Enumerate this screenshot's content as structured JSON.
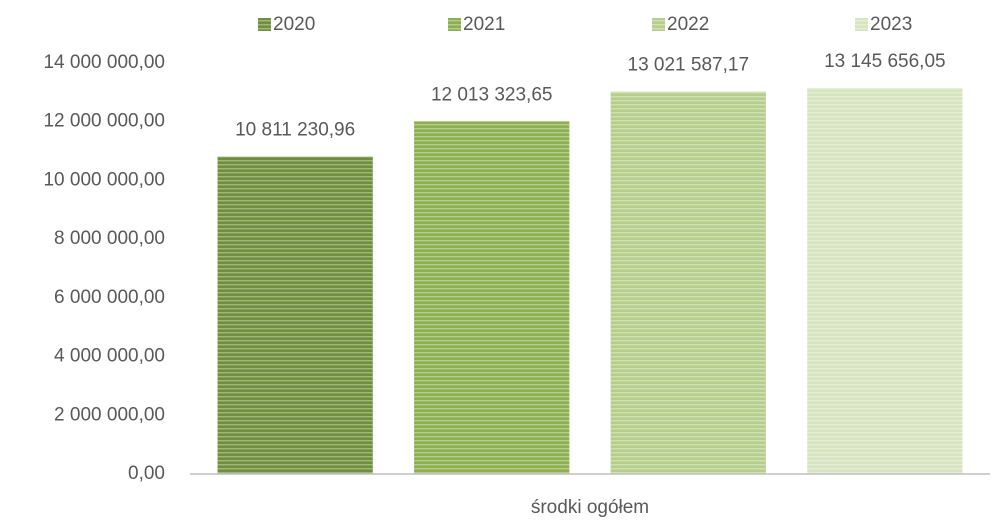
{
  "chart_data": {
    "type": "bar",
    "categories": [
      "środki ogółem"
    ],
    "series": [
      {
        "name": "2020",
        "color": "#6f8f3a",
        "values": [
          10811230.96
        ],
        "value_labels": [
          "10 811 230,96"
        ]
      },
      {
        "name": "2021",
        "color": "#8db04e",
        "values": [
          12013323.65
        ],
        "value_labels": [
          "12 013 323,65"
        ]
      },
      {
        "name": "2022",
        "color": "#b5cf8a",
        "values": [
          13021587.17
        ],
        "value_labels": [
          "13 021 587,17"
        ]
      },
      {
        "name": "2023",
        "color": "#d6e5bf",
        "values": [
          13145656.05
        ],
        "value_labels": [
          "13 145 656,05"
        ]
      }
    ],
    "ylim": [
      0,
      14000000
    ],
    "yticks": [
      {
        "value": 0,
        "label": "0,00"
      },
      {
        "value": 2000000,
        "label": "2 000 000,00"
      },
      {
        "value": 4000000,
        "label": "4 000 000,00"
      },
      {
        "value": 6000000,
        "label": "6 000 000,00"
      },
      {
        "value": 8000000,
        "label": "8 000 000,00"
      },
      {
        "value": 10000000,
        "label": "10 000 000,00"
      },
      {
        "value": 12000000,
        "label": "12 000 000,00"
      },
      {
        "value": 14000000,
        "label": "14 000 000,00"
      }
    ],
    "legend": "top",
    "grid": false
  }
}
